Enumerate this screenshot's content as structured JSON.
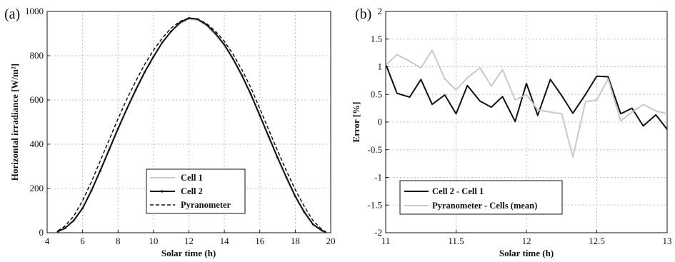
{
  "chart_data": [
    {
      "type": "line",
      "panel_label": "(a)",
      "xlabel": "Solar time (h)",
      "ylabel": "Horizontal irradiance [W/m²]",
      "xlim": [
        4,
        20
      ],
      "ylim": [
        0,
        1000
      ],
      "xticks": [
        4,
        6,
        8,
        10,
        12,
        14,
        16,
        18,
        20
      ],
      "yticks": [
        0,
        200,
        400,
        600,
        800,
        1000
      ],
      "grid": true,
      "legend_position": "bottom-center",
      "series": [
        {
          "name": "Cell 1",
          "color": "#c8c8c8",
          "style": "solid",
          "x": [
            4.6,
            5,
            5.5,
            6,
            6.5,
            7,
            7.5,
            8,
            8.5,
            9,
            9.5,
            10,
            10.5,
            11,
            11.5,
            12,
            12.5,
            13,
            13.5,
            14,
            14.5,
            15,
            15.5,
            16,
            16.5,
            17,
            17.5,
            18,
            18.5,
            19,
            19.5,
            19.7
          ],
          "y": [
            5,
            20,
            55,
            115,
            195,
            285,
            380,
            475,
            565,
            650,
            730,
            800,
            860,
            910,
            945,
            965,
            960,
            935,
            895,
            845,
            780,
            705,
            620,
            525,
            430,
            335,
            245,
            160,
            90,
            35,
            8,
            3
          ]
        },
        {
          "name": "Cell 2",
          "color": "#111111",
          "style": "solid-dots",
          "x": [
            4.6,
            5,
            5.5,
            6,
            6.5,
            7,
            7.5,
            8,
            8.5,
            9,
            9.5,
            10,
            10.5,
            11,
            11.5,
            12,
            12.5,
            13,
            13.5,
            14,
            14.5,
            15,
            15.5,
            16,
            16.5,
            17,
            17.5,
            18,
            18.5,
            19,
            19.5,
            19.7
          ],
          "y": [
            5,
            20,
            55,
            110,
            190,
            280,
            375,
            470,
            560,
            645,
            725,
            795,
            860,
            910,
            950,
            970,
            965,
            940,
            900,
            850,
            785,
            710,
            625,
            530,
            435,
            340,
            250,
            165,
            95,
            38,
            10,
            3
          ]
        },
        {
          "name": "Pyranometer",
          "color": "#111111",
          "style": "dashed",
          "x": [
            4.6,
            5,
            5.5,
            6,
            6.5,
            7,
            7.5,
            8,
            8.5,
            9,
            9.5,
            10,
            10.5,
            11,
            11.5,
            12,
            12.5,
            13,
            13.5,
            14,
            14.5,
            15,
            15.5,
            16,
            16.5,
            17,
            17.5,
            18,
            18.5,
            19,
            19.5,
            19.7
          ],
          "y": [
            8,
            30,
            75,
            145,
            230,
            325,
            420,
            515,
            605,
            685,
            760,
            825,
            880,
            925,
            955,
            970,
            965,
            945,
            910,
            865,
            805,
            735,
            655,
            560,
            465,
            370,
            280,
            195,
            120,
            55,
            15,
            5
          ]
        }
      ]
    },
    {
      "type": "line",
      "panel_label": "(b)",
      "xlabel": "Solar time (h)",
      "ylabel": "Error [%]",
      "xlim": [
        11,
        13
      ],
      "ylim": [
        -2,
        2
      ],
      "xticks": [
        11,
        11.5,
        12,
        12.5,
        13
      ],
      "yticks": [
        -2,
        -1.5,
        -1,
        -0.5,
        0,
        0.5,
        1,
        1.5,
        2
      ],
      "grid": true,
      "legend_position": "bottom-left",
      "series": [
        {
          "name": "Cell 2 - Cell 1",
          "color": "#111111",
          "style": "solid",
          "x": [
            11,
            11.08,
            11.17,
            11.25,
            11.33,
            11.42,
            11.5,
            11.58,
            11.67,
            11.75,
            11.83,
            11.92,
            12,
            12.08,
            12.17,
            12.25,
            12.33,
            12.42,
            12.5,
            12.58,
            12.67,
            12.75,
            12.83,
            12.92,
            13
          ],
          "y": [
            1.05,
            0.52,
            0.45,
            0.77,
            0.32,
            0.49,
            0.15,
            0.66,
            0.38,
            0.27,
            0.46,
            0.01,
            0.7,
            0.12,
            0.77,
            0.48,
            0.16,
            0.5,
            0.83,
            0.82,
            0.15,
            0.25,
            -0.07,
            0.13,
            -0.13
          ]
        },
        {
          "name": "Pyranometer -  Cells (mean)",
          "color": "#c8c8c8",
          "style": "solid",
          "x": [
            11,
            11.08,
            11.17,
            11.25,
            11.33,
            11.42,
            11.5,
            11.58,
            11.67,
            11.75,
            11.83,
            11.92,
            12,
            12.08,
            12.17,
            12.25,
            12.33,
            12.42,
            12.5,
            12.58,
            12.67,
            12.75,
            12.83,
            12.92,
            13
          ],
          "y": [
            1.03,
            1.22,
            1.1,
            0.98,
            1.3,
            0.78,
            0.58,
            0.8,
            0.98,
            0.65,
            0.95,
            0.4,
            0.5,
            0.22,
            0.18,
            0.15,
            -0.63,
            0.37,
            0.4,
            0.78,
            0.02,
            0.18,
            0.32,
            0.2,
            0.15
          ]
        }
      ]
    }
  ]
}
